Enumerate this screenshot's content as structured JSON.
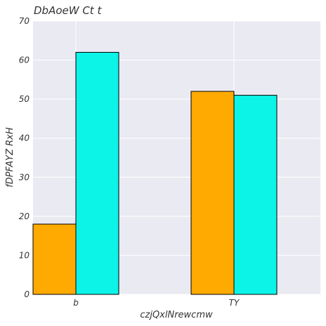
{
  "chart_data": {
    "type": "bar",
    "title": "DbAoeW Ct t",
    "xlabel": "czjQxlNrewcmw",
    "ylabel": "fDPFAYZ RxH",
    "categories": [
      "b",
      "TY"
    ],
    "series": [
      {
        "color": "#FFAA00",
        "values": [
          18,
          52
        ]
      },
      {
        "color": "#0CF3E8",
        "values": [
          62,
          51
        ]
      }
    ],
    "ylim": [
      0,
      70
    ],
    "yticks": [
      0,
      10,
      20,
      30,
      40,
      50,
      60,
      70
    ],
    "grid": true,
    "legend": "none"
  },
  "colors": {
    "plot_background": "#EAEAF2",
    "grid": "#FFFFFF",
    "bar_edge": "#000000"
  }
}
